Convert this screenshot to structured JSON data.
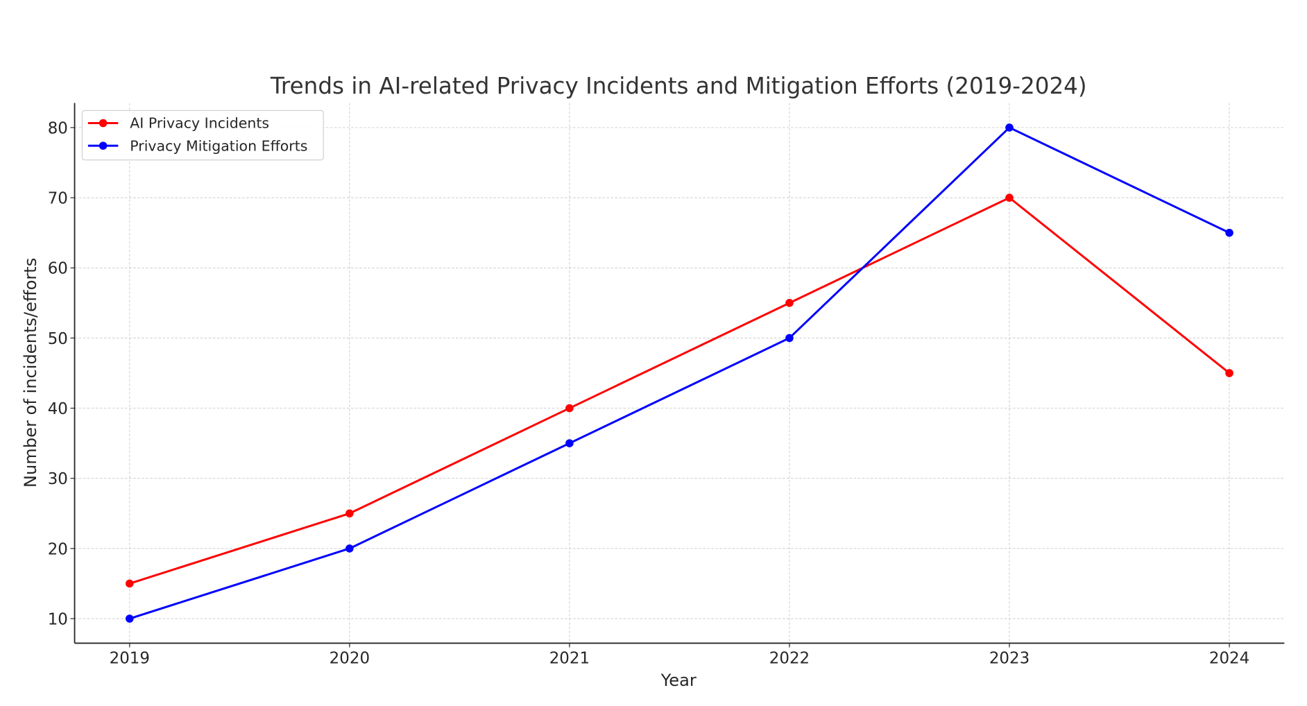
{
  "chart_data": {
    "type": "line",
    "title": "Trends in AI-related Privacy Incidents and Mitigation Efforts (2019-2024)",
    "xlabel": "Year",
    "ylabel": "Number of incidents/efforts",
    "x": [
      2019,
      2020,
      2021,
      2022,
      2023,
      2024
    ],
    "x_tick_labels": [
      "2019",
      "2020",
      "2021",
      "2022",
      "2023",
      "2024"
    ],
    "y_ticks": [
      10,
      20,
      30,
      40,
      50,
      60,
      70,
      80
    ],
    "y_tick_labels": [
      "10",
      "20",
      "30",
      "40",
      "50",
      "60",
      "70",
      "80"
    ],
    "xlim": [
      2018.75,
      2024.25
    ],
    "ylim": [
      6.5,
      83.5
    ],
    "grid": true,
    "legend_position": "top-left",
    "series": [
      {
        "name": "AI Privacy Incidents",
        "color": "#ff0000",
        "marker": "circle",
        "values": [
          15,
          25,
          40,
          55,
          70,
          45
        ]
      },
      {
        "name": "Privacy Mitigation Efforts",
        "color": "#0000ff",
        "marker": "circle",
        "values": [
          10,
          20,
          35,
          50,
          80,
          65
        ]
      }
    ]
  }
}
